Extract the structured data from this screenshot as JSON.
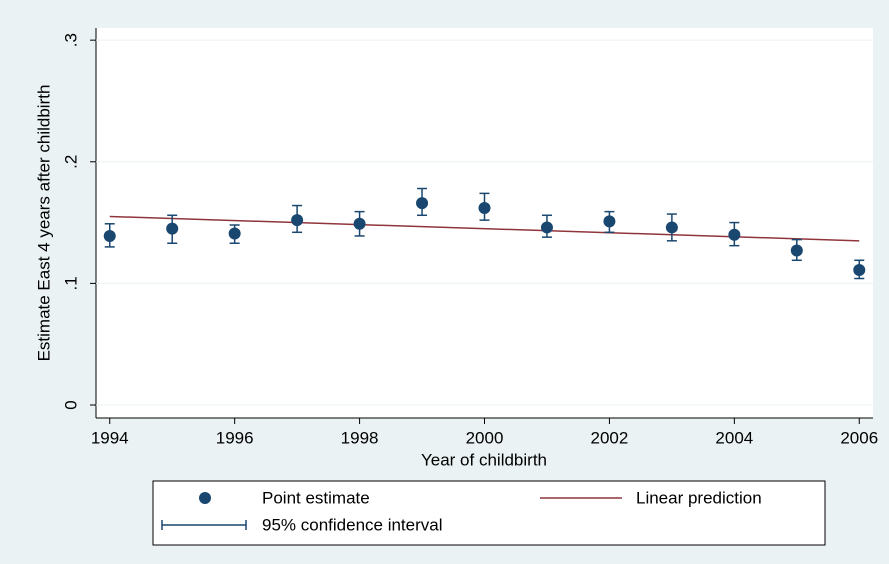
{
  "chart_data": {
    "type": "errorbar",
    "x_label": "Year of childbirth",
    "y_label": "Estimate East 4 years after childbirth",
    "x": [
      1994,
      1995,
      1996,
      1997,
      1998,
      1999,
      2000,
      2001,
      2002,
      2003,
      2004,
      2005,
      2006
    ],
    "series": [
      {
        "name": "Point estimate",
        "color": "#1a476f",
        "values": [
          0.139,
          0.145,
          0.141,
          0.152,
          0.149,
          0.166,
          0.162,
          0.146,
          0.151,
          0.146,
          0.14,
          0.127,
          0.111
        ]
      },
      {
        "name": "95% confidence interval",
        "color": "#1a476f",
        "lower": [
          0.13,
          0.133,
          0.133,
          0.142,
          0.139,
          0.156,
          0.152,
          0.138,
          0.142,
          0.135,
          0.131,
          0.119,
          0.104
        ],
        "upper": [
          0.149,
          0.156,
          0.148,
          0.164,
          0.159,
          0.178,
          0.174,
          0.156,
          0.159,
          0.157,
          0.15,
          0.136,
          0.119
        ]
      },
      {
        "name": "Linear prediction",
        "color": "#90353b",
        "x": [
          1994,
          2006
        ],
        "values": [
          0.155,
          0.135
        ]
      }
    ],
    "xlim": [
      1993.78,
      2006.22
    ],
    "ylim": [
      -0.0107,
      0.31
    ],
    "xticks": [
      1994,
      1996,
      1998,
      2000,
      2002,
      2004,
      2006
    ],
    "yticks": [
      0,
      {
        "value": 0.1,
        "label": ".1"
      },
      {
        "value": 0.2,
        "label": ".2"
      },
      {
        "value": 0.3,
        "label": ".3"
      }
    ],
    "grid": true
  }
}
